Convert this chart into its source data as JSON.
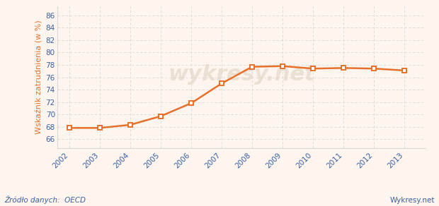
{
  "years": [
    2002,
    2003,
    2004,
    2005,
    2006,
    2007,
    2008,
    2009,
    2010,
    2011,
    2012,
    2013
  ],
  "values": [
    67.8,
    67.8,
    68.3,
    69.7,
    71.8,
    75.0,
    77.7,
    77.8,
    77.4,
    77.5,
    77.4,
    77.1
  ],
  "line_color": "#e8702a",
  "marker_color": "#e8702a",
  "marker_face": "#ffffff",
  "bg_color": "#fdf5ee",
  "grid_color": "#d8d8d8",
  "ylabel": "Wskaźnik zatrudnienia (w %)",
  "ylabel_color": "#e8702a",
  "tick_color": "#3a5fa0",
  "ylim": [
    64.5,
    87.5
  ],
  "yticks": [
    66,
    68,
    70,
    72,
    74,
    76,
    78,
    80,
    82,
    84,
    86
  ],
  "source_text": "Źródło danych:  OECD",
  "watermark": "wykresy.net",
  "brand_text": "Wykresy.net",
  "footnote_color": "#3a5fa0"
}
